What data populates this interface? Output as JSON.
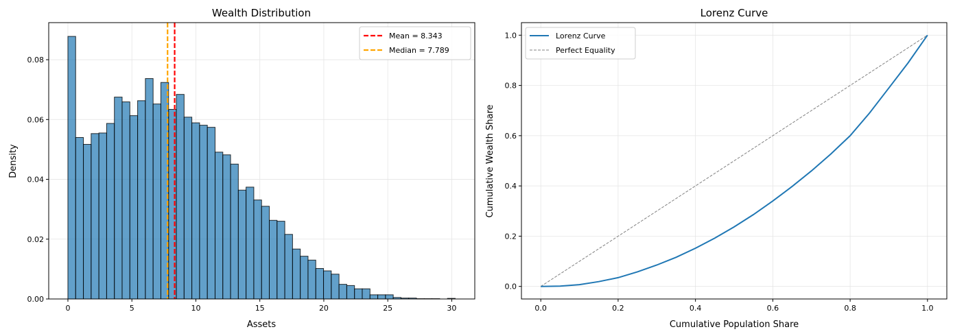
{
  "chart_data": [
    {
      "type": "bar",
      "title": "Wealth Distribution",
      "xlabel": "Assets",
      "ylabel": "Density",
      "xlim": [
        -1.5,
        31.8
      ],
      "ylim": [
        0,
        0.0924
      ],
      "grid": true,
      "bin_start": 0,
      "bin_end": 30.27,
      "bar_color": "#1f77b4",
      "values": [
        0.0878,
        0.054,
        0.0517,
        0.0553,
        0.0555,
        0.0587,
        0.0675,
        0.0659,
        0.0613,
        0.0663,
        0.0737,
        0.0652,
        0.0724,
        0.0634,
        0.0684,
        0.0608,
        0.0589,
        0.0581,
        0.0574,
        0.0491,
        0.0482,
        0.0451,
        0.0364,
        0.0374,
        0.0331,
        0.031,
        0.0263,
        0.026,
        0.0216,
        0.0167,
        0.0143,
        0.013,
        0.0102,
        0.0094,
        0.0083,
        0.0049,
        0.0045,
        0.0034,
        0.0034,
        0.0014,
        0.0014,
        0.0014,
        0.0005,
        0.0003,
        0.0003,
        0.0001,
        0.0001,
        0.0001,
        0,
        0.0002
      ],
      "xticks": [
        0,
        5,
        10,
        15,
        20,
        25,
        30
      ],
      "xtick_labels": [
        "0",
        "5",
        "10",
        "15",
        "20",
        "25",
        "30"
      ],
      "yticks": [
        0,
        0.02,
        0.04,
        0.06,
        0.08
      ],
      "ytick_labels": [
        "0.00",
        "0.02",
        "0.04",
        "0.06",
        "0.08"
      ],
      "vlines": [
        {
          "name": "Mean = 8.343",
          "x": 8.343,
          "color": "#ff0000"
        },
        {
          "name": "Median = 7.789",
          "x": 7.789,
          "color": "#ffa500"
        }
      ],
      "legend": "top-right"
    },
    {
      "type": "line",
      "title": "Lorenz Curve",
      "xlabel": "Cumulative Population Share",
      "ylabel": "Cumulative Wealth Share",
      "xlim": [
        -0.05,
        1.05
      ],
      "ylim": [
        -0.05,
        1.05
      ],
      "grid": true,
      "xticks": [
        0,
        0.2,
        0.4,
        0.6,
        0.8,
        1.0
      ],
      "xtick_labels": [
        "0.0",
        "0.2",
        "0.4",
        "0.6",
        "0.8",
        "1.0"
      ],
      "yticks": [
        0,
        0.2,
        0.4,
        0.6,
        0.8,
        1.0
      ],
      "ytick_labels": [
        "0.0",
        "0.2",
        "0.4",
        "0.6",
        "0.8",
        "1.0"
      ],
      "series": [
        {
          "name": "Lorenz Curve",
          "color": "#1f77b4",
          "x": [
            0,
            0.05,
            0.1,
            0.15,
            0.2,
            0.25,
            0.3,
            0.35,
            0.4,
            0.45,
            0.5,
            0.55,
            0.6,
            0.65,
            0.7,
            0.75,
            0.8,
            0.85,
            0.9,
            0.95,
            1.0
          ],
          "y": [
            0,
            0.001,
            0.007,
            0.019,
            0.035,
            0.058,
            0.085,
            0.116,
            0.152,
            0.192,
            0.237,
            0.286,
            0.34,
            0.398,
            0.46,
            0.527,
            0.6,
            0.69,
            0.79,
            0.89,
            1.0
          ]
        },
        {
          "name": "Perfect Equality",
          "color": "#808080",
          "dashed": true,
          "x": [
            0,
            1
          ],
          "y": [
            0,
            1
          ]
        }
      ],
      "legend": "top-left"
    }
  ]
}
